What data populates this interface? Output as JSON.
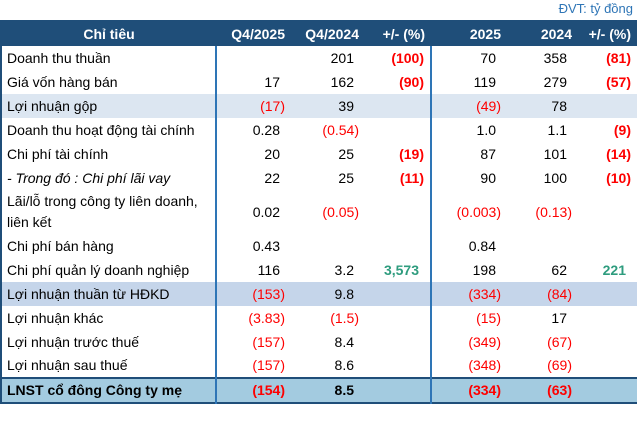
{
  "meta": {
    "unit_label": "ĐVT: tỷ đồng"
  },
  "colors": {
    "header_bg": "#1F4E79",
    "header_text": "#FFFFFF",
    "unit_text": "#2E75B6",
    "divider_blue": "#2E75B6",
    "negative_red": "#FE0000",
    "growth_green": "#2E9C7E",
    "row_shade_light": "#DCE6F1",
    "row_shade_medium": "#C5D5EA",
    "row_shade_strong": "#A3CBE0"
  },
  "table": {
    "headers": [
      "Chỉ tiêu",
      "Q4/2025",
      "Q4/2024",
      "+/- (%)",
      "2025",
      "2024",
      "+/- (%)"
    ],
    "rows": [
      {
        "label": "Doanh thu thuần",
        "cells": [
          "",
          "201",
          "(100)",
          "70",
          "358",
          "(81)"
        ]
      },
      {
        "label": "Giá vốn hàng bán",
        "cells": [
          "17",
          "162",
          "(90)",
          "119",
          "279",
          "(57)"
        ]
      },
      {
        "label": "Lợi nhuận gộp",
        "shade": "light",
        "cells": [
          "(17)",
          "39",
          "",
          "(49)",
          "78",
          ""
        ]
      },
      {
        "label": "Doanh thu hoạt động tài chính",
        "cells": [
          "0.28",
          "(0.54)",
          "",
          "1.0",
          "1.1",
          "(9)"
        ]
      },
      {
        "label": "Chi phí tài chính",
        "cells": [
          "20",
          "25",
          "(19)",
          "87",
          "101",
          "(14)"
        ]
      },
      {
        "label": "- Trong đó : Chi phí lãi vay",
        "italic": true,
        "cells": [
          "22",
          "25",
          "(11)",
          "90",
          "100",
          "(10)"
        ]
      },
      {
        "label": "Lãi/lỗ trong công ty liên doanh, liên kết",
        "cells": [
          "0.02",
          "(0.05)",
          "",
          "(0.003)",
          "(0.13)",
          ""
        ]
      },
      {
        "label": "Chi phí bán hàng",
        "cells": [
          "0.43",
          "",
          "",
          "0.84",
          "",
          ""
        ]
      },
      {
        "label": "Chi phí quản lý doanh nghiệp",
        "cells": [
          "116",
          "3.2",
          "3,573",
          "198",
          "62",
          "221"
        ]
      },
      {
        "label": "Lợi nhuận thuần từ HĐKD",
        "shade": "medium",
        "cells": [
          "(153)",
          "9.8",
          "",
          "(334)",
          "(84)",
          ""
        ]
      },
      {
        "label": "Lợi nhuận khác",
        "cells": [
          "(3.83)",
          "(1.5)",
          "",
          "(15)",
          "17",
          ""
        ]
      },
      {
        "label": "Lợi nhuận trước thuế",
        "cells": [
          "(157)",
          "8.4",
          "",
          "(349)",
          "(67)",
          ""
        ]
      },
      {
        "label": "Lợi nhuận sau thuế",
        "cells": [
          "(157)",
          "8.6",
          "",
          "(348)",
          "(69)",
          ""
        ]
      },
      {
        "label": "LNST cổ đông Công ty mẹ",
        "shade": "strong",
        "cells": [
          "(154)",
          "8.5",
          "",
          "(334)",
          "(63)",
          ""
        ]
      }
    ]
  },
  "chart_data": {
    "type": "table",
    "title": "Ket qua kinh doanh",
    "unit": "tỷ đồng",
    "columns": [
      "Chỉ tiêu",
      "Q4/2025",
      "Q4/2024",
      "+/- (%)",
      "2025",
      "2024",
      "+/- (%)"
    ],
    "rows": [
      {
        "label": "Doanh thu thuần",
        "values": [
          null,
          201,
          -100,
          70,
          358,
          -81
        ]
      },
      {
        "label": "Giá vốn hàng bán",
        "values": [
          17,
          162,
          -90,
          119,
          279,
          -57
        ]
      },
      {
        "label": "Lợi nhuận gộp",
        "values": [
          -17,
          39,
          null,
          -49,
          78,
          null
        ]
      },
      {
        "label": "Doanh thu hoạt động tài chính",
        "values": [
          0.28,
          -0.54,
          null,
          1.0,
          1.1,
          -9
        ]
      },
      {
        "label": "Chi phí tài chính",
        "values": [
          20,
          25,
          -19,
          87,
          101,
          -14
        ]
      },
      {
        "label": "- Trong đó : Chi phí lãi vay",
        "values": [
          22,
          25,
          -11,
          90,
          100,
          -10
        ]
      },
      {
        "label": "Lãi/lỗ trong công ty liên doanh, liên kết",
        "values": [
          0.02,
          -0.05,
          null,
          -0.003,
          -0.13,
          null
        ]
      },
      {
        "label": "Chi phí bán hàng",
        "values": [
          0.43,
          null,
          null,
          0.84,
          null,
          null
        ]
      },
      {
        "label": "Chi phí quản lý doanh nghiệp",
        "values": [
          116,
          3.2,
          3573,
          198,
          62,
          221
        ]
      },
      {
        "label": "Lợi nhuận thuần từ HĐKD",
        "values": [
          -153,
          9.8,
          null,
          -334,
          -84,
          null
        ]
      },
      {
        "label": "Lợi nhuận khác",
        "values": [
          -3.83,
          -1.5,
          null,
          -15,
          17,
          null
        ]
      },
      {
        "label": "Lợi nhuận trước thuế",
        "values": [
          -157,
          8.4,
          null,
          -349,
          -67,
          null
        ]
      },
      {
        "label": "Lợi nhuận sau thuế",
        "values": [
          -157,
          8.6,
          null,
          -348,
          -69,
          null
        ]
      },
      {
        "label": "LNST cổ đông Công ty mẹ",
        "values": [
          -154,
          8.5,
          null,
          -334,
          -63,
          null
        ]
      }
    ]
  }
}
